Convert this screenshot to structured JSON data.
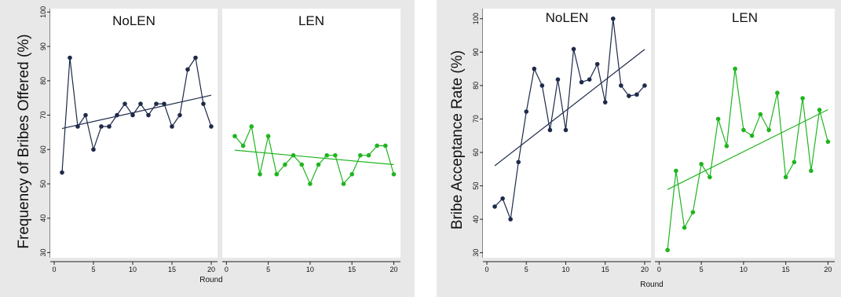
{
  "chart_data": [
    {
      "type": "line",
      "ylabel": "Frequency of Bribes Offered (%)",
      "xlabel": "Round",
      "ylim": [
        28.5,
        101
      ],
      "yticks": [
        30,
        40,
        50,
        60,
        70,
        80,
        90,
        100
      ],
      "xlim": [
        -0.5,
        20.8
      ],
      "xticks": [
        0,
        5,
        10,
        15,
        20
      ],
      "grid": false,
      "panels": [
        {
          "title": "NoLEN",
          "color": "#1e2a4a",
          "x": [
            1,
            2,
            3,
            4,
            5,
            6,
            7,
            8,
            9,
            10,
            11,
            12,
            13,
            14,
            15,
            16,
            17,
            18,
            19,
            20
          ],
          "values": [
            53.3,
            86.7,
            66.7,
            70.0,
            60.0,
            66.7,
            66.7,
            70.0,
            73.3,
            70.0,
            73.3,
            70.0,
            73.3,
            73.3,
            66.7,
            70.0,
            83.3,
            86.7,
            73.3,
            66.7
          ],
          "fit": {
            "start": [
              1,
              66.1
            ],
            "end": [
              20,
              75.8
            ]
          }
        },
        {
          "title": "LEN",
          "color": "#1fb51f",
          "x": [
            1,
            2,
            3,
            4,
            5,
            6,
            7,
            8,
            9,
            10,
            11,
            12,
            13,
            14,
            15,
            16,
            17,
            18,
            19,
            20
          ],
          "values": [
            63.9,
            61.1,
            66.7,
            52.8,
            63.9,
            52.8,
            55.6,
            58.3,
            55.6,
            50.0,
            55.6,
            58.3,
            58.3,
            50.0,
            52.8,
            58.3,
            58.3,
            61.1,
            61.1,
            52.8
          ],
          "fit": {
            "start": [
              1,
              59.8
            ],
            "end": [
              20,
              55.6
            ]
          }
        }
      ]
    },
    {
      "type": "line",
      "ylabel": "Bribe Acceptance Rate (%)",
      "xlabel": "Round",
      "ylim": [
        28.5,
        103
      ],
      "yticks": [
        30,
        40,
        50,
        60,
        70,
        80,
        90,
        100
      ],
      "xlim": [
        -0.5,
        20.8
      ],
      "xticks": [
        0,
        5,
        10,
        15,
        20
      ],
      "grid": false,
      "panels": [
        {
          "title": "NoLEN",
          "color": "#1e2a4a",
          "x": [
            1,
            2,
            3,
            4,
            5,
            6,
            7,
            8,
            9,
            10,
            11,
            12,
            13,
            14,
            15,
            16,
            17,
            18,
            19,
            20
          ],
          "values": [
            43.8,
            46.2,
            40.0,
            57.1,
            72.2,
            85.0,
            80.0,
            66.7,
            81.8,
            66.7,
            90.9,
            81.0,
            81.8,
            86.4,
            75.0,
            100.0,
            80.0,
            76.9,
            77.3,
            80.0
          ],
          "fit": {
            "start": [
              1,
              56.0
            ],
            "end": [
              20,
              90.8
            ]
          }
        },
        {
          "title": "LEN",
          "color": "#1fb51f",
          "x": [
            1,
            2,
            3,
            4,
            5,
            6,
            7,
            8,
            9,
            10,
            11,
            12,
            13,
            14,
            15,
            16,
            17,
            18,
            19,
            20
          ],
          "values": [
            30.8,
            54.5,
            37.5,
            42.1,
            56.5,
            52.6,
            70.0,
            61.9,
            85.0,
            66.7,
            65.0,
            71.4,
            66.7,
            77.8,
            52.6,
            57.1,
            76.2,
            54.5,
            72.7,
            63.2
          ],
          "fit": {
            "start": [
              1,
              48.9
            ],
            "end": [
              20,
              72.8
            ]
          }
        }
      ]
    }
  ]
}
